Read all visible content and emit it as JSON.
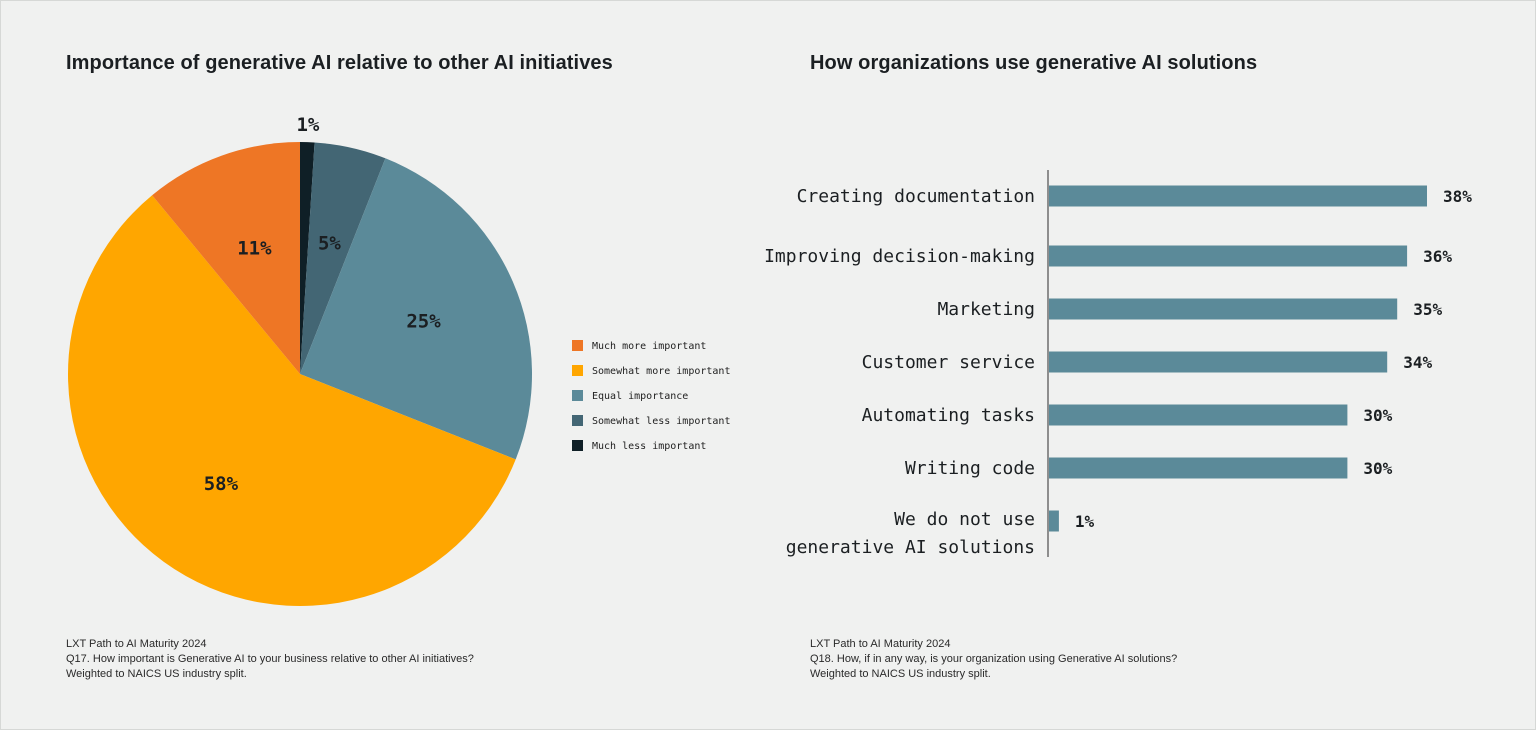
{
  "left_panel": {
    "title": "Importance of generative AI relative to other AI initiatives",
    "notes": [
      "LXT Path to AI Maturity 2024",
      "Q17. How important is Generative AI to your business relative to other AI initiatives?",
      "Weighted to NAICS US industry split."
    ]
  },
  "right_panel": {
    "title": "How organizations use generative AI solutions",
    "notes": [
      "LXT Path to AI Maturity 2024",
      "Q18. How, if in any way, is your organization using Generative AI solutions?",
      "Weighted to NAICS US industry split."
    ]
  },
  "chart_data": [
    {
      "type": "pie",
      "title": "Importance of generative AI relative to other AI initiatives",
      "start": "12 o'clock, clockwise",
      "legend_position": "right",
      "slices": [
        {
          "label": "Much less important",
          "value": 1,
          "display": "1%",
          "color": "#0f1f26"
        },
        {
          "label": "Somewhat less important",
          "value": 5,
          "display": "5%",
          "color": "#436674"
        },
        {
          "label": "Equal importance",
          "value": 25,
          "display": "25%",
          "color": "#5b8a99"
        },
        {
          "label": "Somewhat more important",
          "value": 58,
          "display": "58%",
          "color": "#ffa600"
        },
        {
          "label": "Much more important",
          "value": 11,
          "display": "11%",
          "color": "#ee7625"
        }
      ],
      "legend_order": [
        "Much more important",
        "Somewhat more important",
        "Equal importance",
        "Somewhat less important",
        "Much less important"
      ]
    },
    {
      "type": "bar",
      "orientation": "horizontal",
      "title": "How organizations use generative AI solutions",
      "bar_color": "#5b8a99",
      "xlim": [
        0,
        38
      ],
      "categories": [
        [
          "Creating documentation"
        ],
        [
          "Improving decision-making"
        ],
        [
          "Marketing"
        ],
        [
          "Customer service"
        ],
        [
          "Automating tasks"
        ],
        [
          "Writing code"
        ],
        [
          "We do not use",
          "generative AI solutions"
        ]
      ],
      "values": [
        38,
        36,
        35,
        34,
        30,
        30,
        1
      ],
      "labels": [
        "38%",
        "36%",
        "35%",
        "34%",
        "30%",
        "30%",
        "1%"
      ]
    }
  ]
}
